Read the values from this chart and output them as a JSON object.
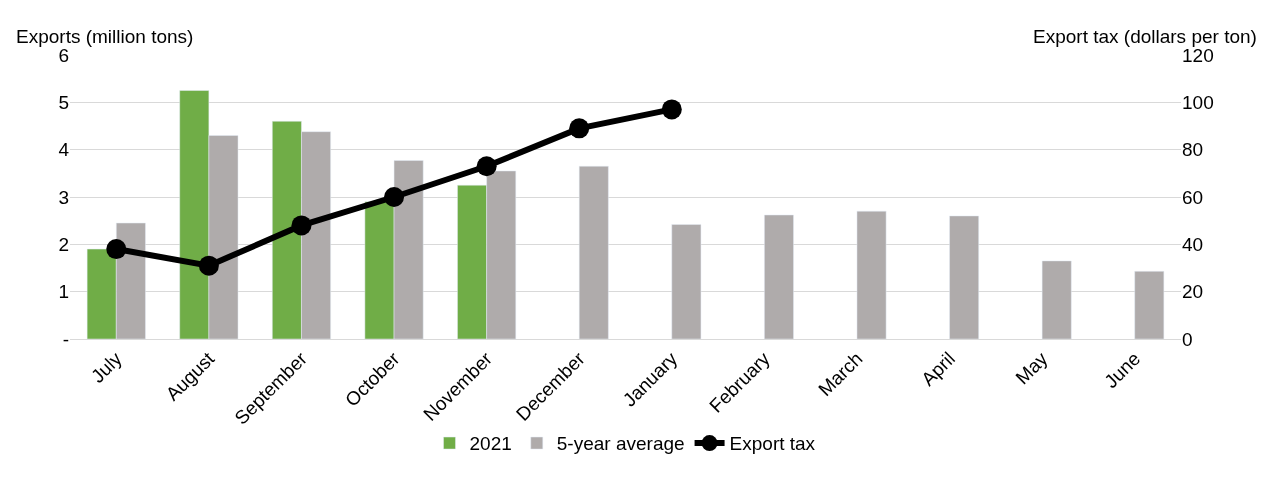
{
  "chart_data": {
    "type": "bar",
    "ylabel": "Exports (million tons)",
    "y2label": "Export tax (dollars per ton)",
    "categories": [
      "July",
      "August",
      "September",
      "October",
      "November",
      "December",
      "January",
      "February",
      "March",
      "April",
      "May",
      "June"
    ],
    "series": [
      {
        "name": "2021",
        "color": "#70ad47",
        "values": [
          1.9,
          5.25,
          4.6,
          2.9,
          3.25,
          null,
          null,
          null,
          null,
          null,
          null,
          null
        ]
      },
      {
        "name": "5-year average",
        "color": "#afabab",
        "values": [
          2.45,
          4.3,
          4.38,
          3.77,
          3.55,
          3.65,
          2.42,
          2.62,
          2.7,
          2.6,
          1.65,
          1.43
        ]
      },
      {
        "name": "Export tax",
        "type": "line",
        "axis": "y2",
        "color": "#000000",
        "marker": "circle",
        "values": [
          38,
          31,
          48,
          60,
          73,
          89,
          97,
          null,
          null,
          null,
          null,
          null
        ]
      }
    ],
    "ylim": [
      0,
      6
    ],
    "yticks": [
      {
        "value": 0,
        "label": "-"
      },
      1,
      2,
      3,
      4,
      5,
      6
    ],
    "y2lim": [
      0,
      120
    ],
    "y2ticks": [
      0,
      20,
      40,
      60,
      80,
      100,
      120
    ],
    "grid": "y",
    "legend": "bottom"
  }
}
